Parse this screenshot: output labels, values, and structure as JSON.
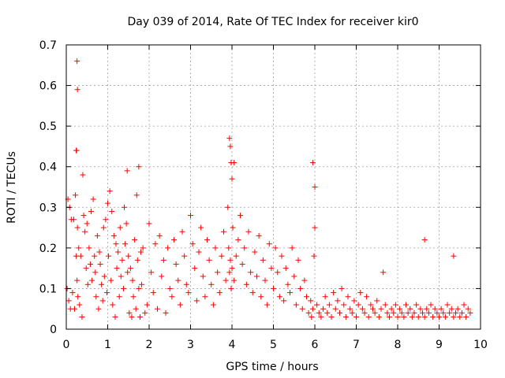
{
  "chart_data": {
    "type": "scatter",
    "title": "Day 039 of 2014, Rate Of TEC Index for receiver kir0",
    "xlabel": "GPS time / hours",
    "ylabel": "ROTI / TECUs",
    "xlim": [
      0,
      10
    ],
    "ylim": [
      0,
      0.7
    ],
    "xticks": [
      "0",
      "1",
      "2",
      "3",
      "4",
      "5",
      "6",
      "7",
      "8",
      "9",
      "10"
    ],
    "yticks": [
      "0",
      "0.1",
      "0.2",
      "0.3",
      "0.4",
      "0.5",
      "0.6",
      "0.7"
    ],
    "grid": true,
    "marker": "plus",
    "marker_color": "#ff0000",
    "series": [
      {
        "name": "ROTI",
        "x": [
          0.02,
          0.04,
          0.06,
          0.08,
          0.1,
          0.12,
          0.15,
          0.18,
          0.2,
          0.22,
          0.24,
          0.25,
          0.26,
          0.27,
          0.28,
          0.3,
          0.32,
          0.35,
          0.38,
          0.4,
          0.42,
          0.45,
          0.48,
          0.5,
          0.52,
          0.55,
          0.58,
          0.6,
          0.62,
          0.65,
          0.68,
          0.7,
          0.72,
          0.75,
          0.78,
          0.8,
          0.82,
          0.85,
          0.88,
          0.9,
          0.92,
          0.95,
          0.98,
          1.0,
          1.02,
          1.05,
          1.08,
          1.1,
          1.12,
          1.15,
          1.18,
          1.2,
          1.22,
          1.25,
          1.28,
          1.3,
          1.32,
          1.35,
          1.38,
          1.4,
          1.42,
          1.45,
          1.48,
          1.5,
          1.52,
          1.55,
          1.58,
          1.6,
          1.62,
          1.65,
          1.68,
          1.7,
          1.72,
          1.75,
          1.78,
          1.8,
          1.82,
          1.85,
          1.9,
          1.95,
          2.0,
          2.05,
          2.1,
          2.15,
          2.2,
          2.25,
          2.3,
          2.35,
          2.4,
          2.45,
          2.5,
          2.55,
          2.6,
          2.65,
          2.7,
          2.75,
          2.8,
          2.85,
          2.9,
          2.95,
          3.0,
          3.05,
          3.1,
          3.15,
          3.2,
          3.25,
          3.3,
          3.35,
          3.4,
          3.45,
          3.5,
          3.55,
          3.6,
          3.65,
          3.7,
          3.75,
          3.8,
          3.85,
          3.9,
          3.92,
          3.94,
          3.96,
          3.98,
          4.0,
          4.02,
          4.05,
          4.1,
          4.15,
          4.2,
          4.25,
          4.3,
          4.35,
          4.4,
          4.45,
          4.5,
          4.55,
          4.6,
          4.65,
          4.7,
          4.75,
          4.8,
          4.85,
          4.9,
          4.95,
          5.0,
          5.05,
          5.1,
          5.15,
          5.2,
          5.25,
          5.3,
          5.35,
          5.4,
          5.45,
          5.5,
          5.55,
          5.6,
          5.65,
          5.7,
          5.75,
          5.8,
          5.85,
          5.9,
          5.92,
          5.95,
          5.98,
          6.0,
          6.05,
          6.1,
          6.15,
          6.2,
          6.25,
          6.3,
          6.35,
          6.4,
          6.45,
          6.5,
          6.55,
          6.6,
          6.65,
          6.7,
          6.75,
          6.8,
          6.85,
          6.9,
          6.95,
          7.0,
          7.05,
          7.1,
          7.15,
          7.2,
          7.25,
          7.3,
          7.35,
          7.4,
          7.45,
          7.5,
          7.55,
          7.6,
          7.65,
          7.7,
          7.75,
          7.8,
          7.85,
          7.9,
          7.95,
          8.0,
          8.05,
          8.1,
          8.15,
          8.2,
          8.25,
          8.3,
          8.35,
          8.4,
          8.45,
          8.5,
          8.55,
          8.6,
          8.65,
          8.7,
          8.75,
          8.8,
          8.85,
          8.9,
          8.95,
          9.0,
          9.05,
          9.1,
          9.15,
          9.2,
          9.25,
          9.3,
          9.35,
          9.4,
          9.45,
          9.5,
          9.55,
          9.6,
          9.65,
          9.7,
          9.75,
          0.26,
          0.27,
          0.24,
          1.47,
          1.75,
          3.94,
          3.96,
          3.98,
          4.0,
          4.05,
          5.95,
          6.0,
          8.65,
          9.35
        ],
        "y": [
          0.1,
          0.32,
          0.07,
          0.3,
          0.05,
          0.27,
          0.09,
          0.27,
          0.05,
          0.33,
          0.18,
          0.44,
          0.12,
          0.25,
          0.08,
          0.2,
          0.06,
          0.18,
          0.03,
          0.38,
          0.28,
          0.24,
          0.15,
          0.26,
          0.11,
          0.2,
          0.16,
          0.29,
          0.12,
          0.32,
          0.18,
          0.14,
          0.08,
          0.23,
          0.05,
          0.19,
          0.16,
          0.11,
          0.07,
          0.25,
          0.13,
          0.27,
          0.09,
          0.31,
          0.18,
          0.34,
          0.12,
          0.29,
          0.06,
          0.23,
          0.03,
          0.21,
          0.15,
          0.19,
          0.08,
          0.25,
          0.13,
          0.17,
          0.1,
          0.3,
          0.21,
          0.26,
          0.14,
          0.18,
          0.04,
          0.15,
          0.03,
          0.12,
          0.08,
          0.22,
          0.05,
          0.33,
          0.17,
          0.1,
          0.03,
          0.19,
          0.11,
          0.2,
          0.04,
          0.06,
          0.26,
          0.14,
          0.09,
          0.21,
          0.05,
          0.23,
          0.13,
          0.17,
          0.04,
          0.2,
          0.1,
          0.08,
          0.22,
          0.16,
          0.12,
          0.06,
          0.24,
          0.18,
          0.11,
          0.09,
          0.28,
          0.21,
          0.15,
          0.07,
          0.19,
          0.25,
          0.13,
          0.08,
          0.22,
          0.17,
          0.11,
          0.06,
          0.2,
          0.14,
          0.09,
          0.18,
          0.24,
          0.12,
          0.3,
          0.2,
          0.14,
          0.17,
          0.1,
          0.15,
          0.25,
          0.12,
          0.18,
          0.22,
          0.28,
          0.16,
          0.2,
          0.11,
          0.24,
          0.14,
          0.09,
          0.19,
          0.13,
          0.23,
          0.08,
          0.17,
          0.12,
          0.06,
          0.21,
          0.15,
          0.1,
          0.2,
          0.14,
          0.08,
          0.18,
          0.07,
          0.15,
          0.11,
          0.09,
          0.2,
          0.13,
          0.06,
          0.17,
          0.1,
          0.05,
          0.12,
          0.08,
          0.04,
          0.07,
          0.03,
          0.05,
          0.18,
          0.25,
          0.06,
          0.04,
          0.03,
          0.05,
          0.08,
          0.04,
          0.06,
          0.03,
          0.09,
          0.05,
          0.07,
          0.04,
          0.1,
          0.06,
          0.03,
          0.08,
          0.05,
          0.04,
          0.07,
          0.03,
          0.06,
          0.09,
          0.05,
          0.04,
          0.08,
          0.03,
          0.06,
          0.05,
          0.04,
          0.07,
          0.03,
          0.05,
          0.14,
          0.06,
          0.04,
          0.03,
          0.05,
          0.04,
          0.06,
          0.03,
          0.05,
          0.04,
          0.03,
          0.06,
          0.04,
          0.05,
          0.03,
          0.04,
          0.06,
          0.03,
          0.05,
          0.04,
          0.03,
          0.05,
          0.04,
          0.06,
          0.03,
          0.05,
          0.04,
          0.03,
          0.05,
          0.04,
          0.03,
          0.06,
          0.04,
          0.05,
          0.03,
          0.04,
          0.05,
          0.03,
          0.04,
          0.06,
          0.03,
          0.05,
          0.04,
          0.66,
          0.59,
          0.44,
          0.39,
          0.4,
          0.47,
          0.45,
          0.41,
          0.37,
          0.41,
          0.41,
          0.35,
          0.22,
          0.18
        ]
      }
    ]
  }
}
